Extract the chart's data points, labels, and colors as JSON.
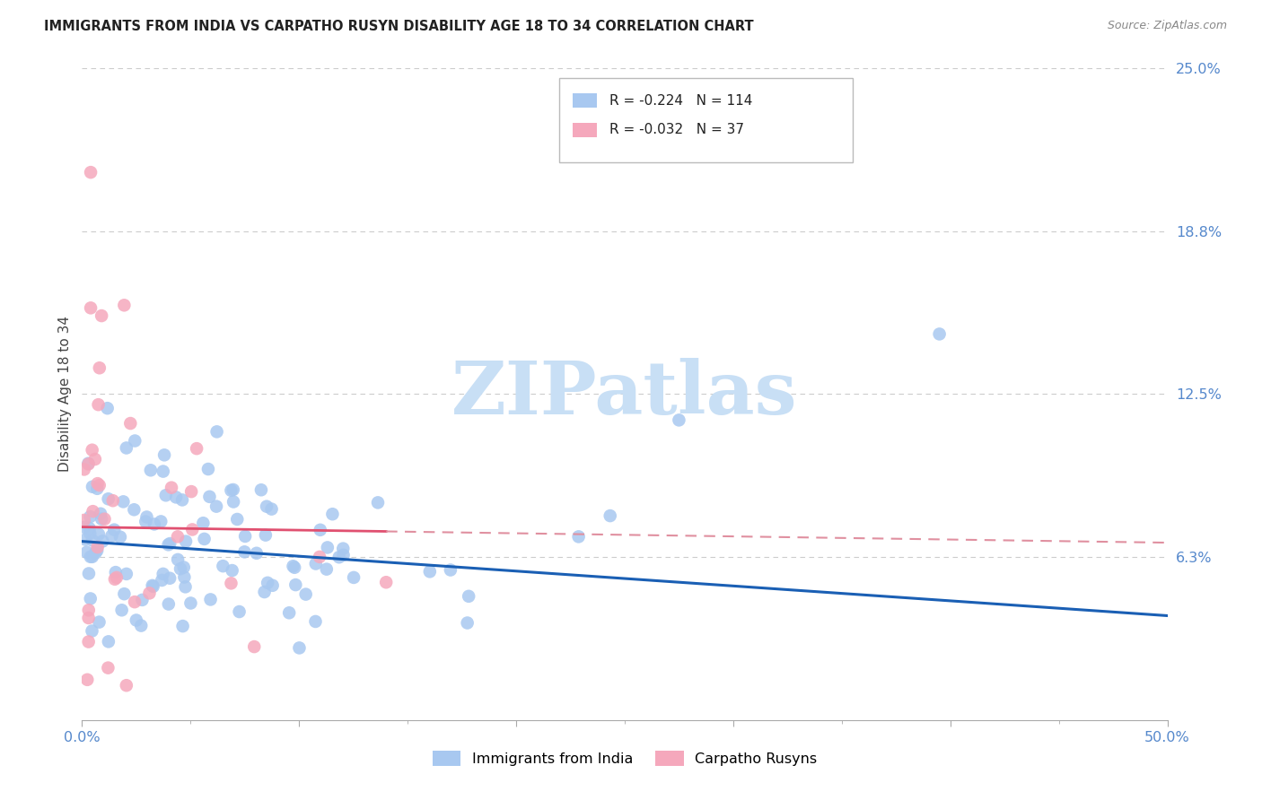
{
  "title": "IMMIGRANTS FROM INDIA VS CARPATHO RUSYN DISABILITY AGE 18 TO 34 CORRELATION CHART",
  "source": "Source: ZipAtlas.com",
  "ylabel": "Disability Age 18 to 34",
  "xlim": [
    0.0,
    0.5
  ],
  "ylim": [
    0.0,
    0.25
  ],
  "ytick_vals": [
    0.0625,
    0.125,
    0.1875,
    0.25
  ],
  "ytick_labels": [
    "6.3%",
    "12.5%",
    "18.8%",
    "25.0%"
  ],
  "xtick_vals": [
    0.0,
    0.1,
    0.2,
    0.3,
    0.4,
    0.5
  ],
  "xtick_labels": [
    "0.0%",
    "",
    "",
    "",
    "",
    "50.0%"
  ],
  "legend_blue_r": "-0.224",
  "legend_blue_n": "114",
  "legend_pink_r": "-0.032",
  "legend_pink_n": "37",
  "blue_color": "#a8c8f0",
  "pink_color": "#f5a8bc",
  "blue_line_color": "#1a5fb4",
  "pink_line_color": "#e05070",
  "pink_dash_color": "#e090a0",
  "watermark_color": "#c8dff5",
  "grid_color": "#cccccc",
  "axis_label_color": "#5588cc",
  "title_color": "#222222",
  "source_color": "#888888",
  "blue_intercept": 0.0685,
  "blue_slope": -0.055,
  "pink_intercept": 0.072,
  "pink_slope": -0.01,
  "blue_seed": 17,
  "pink_seed": 99
}
